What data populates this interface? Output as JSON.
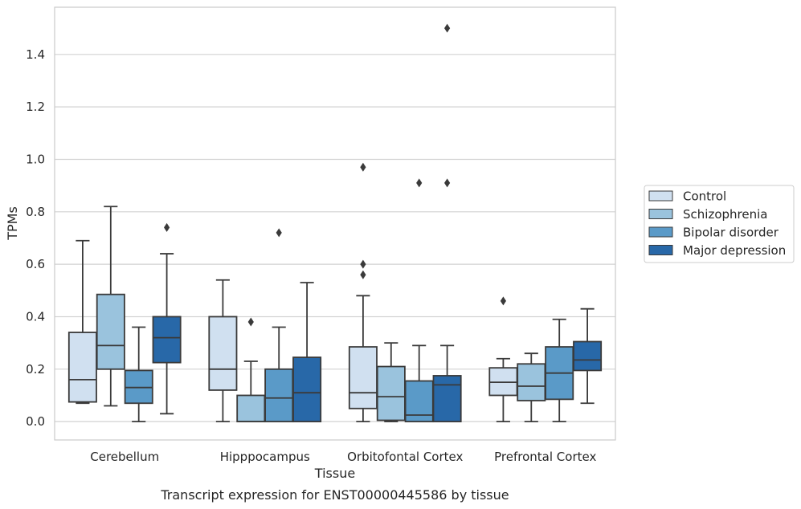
{
  "chart_data": {
    "type": "box",
    "xlabel": "Tissue",
    "ylabel": "TPMs",
    "caption": "Transcript expression for ENST00000445586 by tissue",
    "ylim": [
      -0.07,
      1.58
    ],
    "yticks": [
      "0.0",
      "0.2",
      "0.4",
      "0.6",
      "0.8",
      "1.0",
      "1.2",
      "1.4"
    ],
    "grid": "horizontal",
    "legend_position": "right",
    "categories": [
      "Cerebellum",
      "Hipppocampus",
      "Orbitofontal Cortex",
      "Prefrontal Cortex"
    ],
    "series": [
      {
        "name": "Control",
        "color": "#d0e0f0",
        "boxes": [
          {
            "whislo": 0.07,
            "q1": 0.075,
            "med": 0.16,
            "q3": 0.34,
            "whishi": 0.69,
            "fliers": []
          },
          {
            "whislo": 0.0,
            "q1": 0.12,
            "med": 0.2,
            "q3": 0.4,
            "whishi": 0.54,
            "fliers": []
          },
          {
            "whislo": 0.0,
            "q1": 0.05,
            "med": 0.11,
            "q3": 0.285,
            "whishi": 0.48,
            "fliers": [
              0.97,
              0.6,
              0.56
            ]
          },
          {
            "whislo": 0.0,
            "q1": 0.1,
            "med": 0.15,
            "q3": 0.205,
            "whishi": 0.24,
            "fliers": [
              0.46
            ]
          }
        ]
      },
      {
        "name": "Schizophrenia",
        "color": "#9ac3dd",
        "boxes": [
          {
            "whislo": 0.06,
            "q1": 0.2,
            "med": 0.29,
            "q3": 0.485,
            "whishi": 0.82,
            "fliers": []
          },
          {
            "whislo": 0.0,
            "q1": 0.0,
            "med": 0.0,
            "q3": 0.1,
            "whishi": 0.23,
            "fliers": [
              0.38
            ]
          },
          {
            "whislo": 0.0,
            "q1": 0.005,
            "med": 0.095,
            "q3": 0.21,
            "whishi": 0.3,
            "fliers": []
          },
          {
            "whislo": 0.0,
            "q1": 0.08,
            "med": 0.135,
            "q3": 0.22,
            "whishi": 0.26,
            "fliers": []
          }
        ]
      },
      {
        "name": "Bipolar disorder",
        "color": "#5a9ac8",
        "boxes": [
          {
            "whislo": 0.0,
            "q1": 0.07,
            "med": 0.13,
            "q3": 0.195,
            "whishi": 0.36,
            "fliers": []
          },
          {
            "whislo": 0.0,
            "q1": 0.0,
            "med": 0.09,
            "q3": 0.2,
            "whishi": 0.36,
            "fliers": [
              0.72
            ]
          },
          {
            "whislo": 0.0,
            "q1": 0.0,
            "med": 0.025,
            "q3": 0.155,
            "whishi": 0.29,
            "fliers": [
              0.91
            ]
          },
          {
            "whislo": 0.0,
            "q1": 0.085,
            "med": 0.185,
            "q3": 0.285,
            "whishi": 0.39,
            "fliers": []
          }
        ]
      },
      {
        "name": "Major depression",
        "color": "#2868a8",
        "boxes": [
          {
            "whislo": 0.03,
            "q1": 0.225,
            "med": 0.32,
            "q3": 0.4,
            "whishi": 0.64,
            "fliers": [
              0.74
            ]
          },
          {
            "whislo": 0.0,
            "q1": 0.0,
            "med": 0.11,
            "q3": 0.245,
            "whishi": 0.53,
            "fliers": []
          },
          {
            "whislo": 0.0,
            "q1": 0.0,
            "med": 0.14,
            "q3": 0.175,
            "whishi": 0.29,
            "fliers": [
              1.5,
              0.91
            ]
          },
          {
            "whislo": 0.07,
            "q1": 0.195,
            "med": 0.235,
            "q3": 0.305,
            "whishi": 0.43,
            "fliers": []
          }
        ]
      }
    ]
  }
}
